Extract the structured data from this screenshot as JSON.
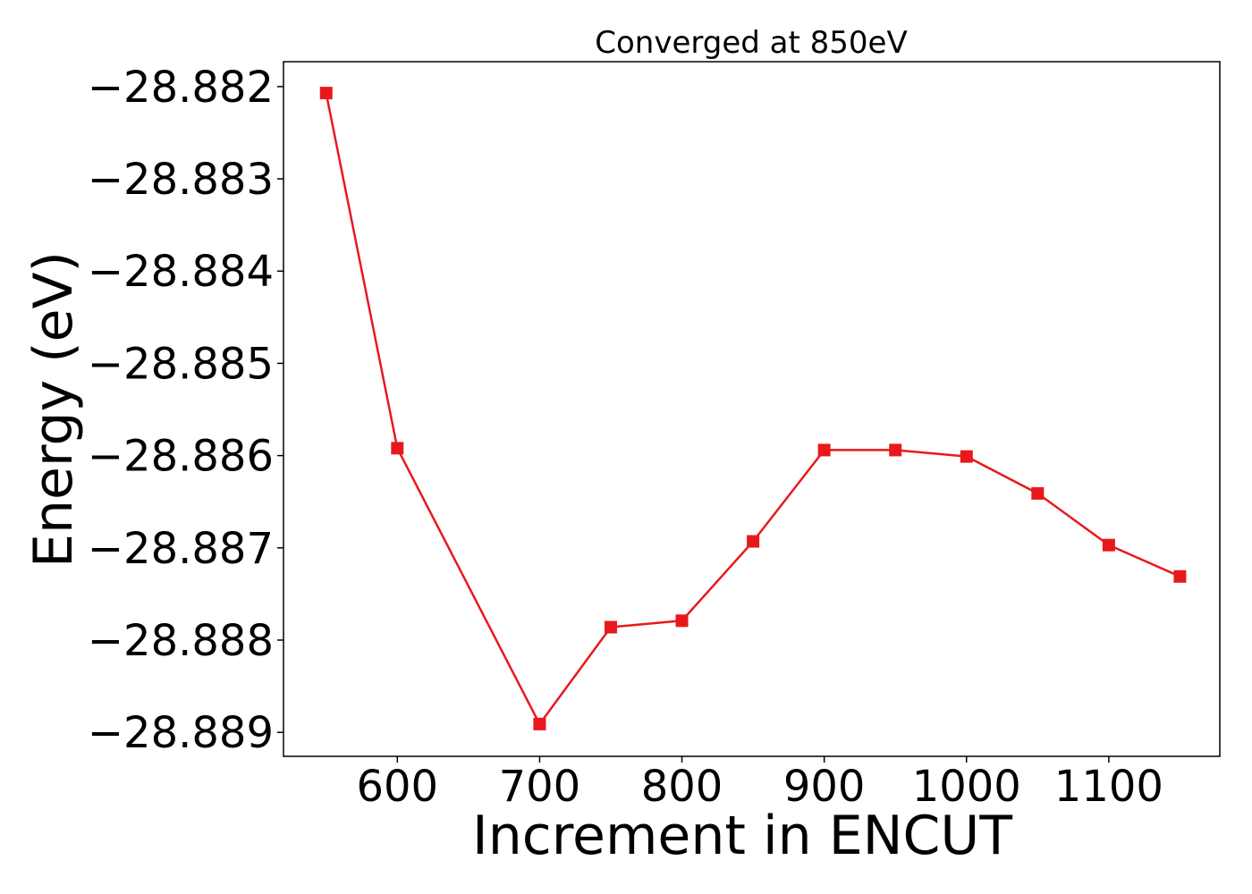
{
  "chart_data": {
    "type": "line",
    "title": "Converged at 850eV",
    "xlabel": "Increment in ENCUT",
    "ylabel": "Energy (eV)",
    "x": [
      550,
      600,
      700,
      750,
      800,
      850,
      900,
      950,
      1000,
      1050,
      1100,
      1150
    ],
    "series": [
      {
        "values": [
          -28.88207,
          -28.88592,
          -28.88891,
          -28.88786,
          -28.88779,
          -28.88693,
          -28.88594,
          -28.88594,
          -28.88601,
          -28.88641,
          -28.88697,
          -28.88731
        ],
        "color": "#e8191c",
        "marker": "square"
      }
    ],
    "xlim": [
      520,
      1178
    ],
    "ylim": [
      -28.88926,
      -28.88173
    ],
    "xticks": [
      600,
      700,
      800,
      900,
      1000,
      1100
    ],
    "xtick_labels": [
      "600",
      "700",
      "800",
      "900",
      "1000",
      "1100"
    ],
    "yticks": [
      -28.882,
      -28.883,
      -28.884,
      -28.885,
      -28.886,
      -28.887,
      -28.888,
      -28.889
    ],
    "ytick_labels": [
      "−28.882",
      "−28.883",
      "−28.884",
      "−28.885",
      "−28.886",
      "−28.887",
      "−28.888",
      "−28.889"
    ],
    "grid": false,
    "legend": "none"
  }
}
